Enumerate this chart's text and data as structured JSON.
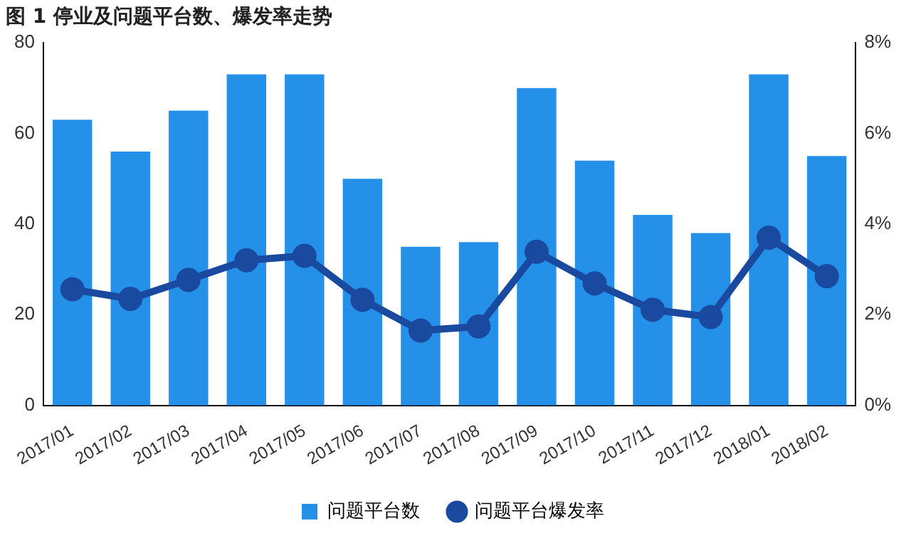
{
  "chart_data": {
    "type": "bar",
    "title": "图 1 停业及问题平台数、爆发率走势",
    "categories": [
      "2017/01",
      "2017/02",
      "2017/03",
      "2017/04",
      "2017/05",
      "2017/06",
      "2017/07",
      "2017/08",
      "2017/09",
      "2017/10",
      "2017/11",
      "2017/12",
      "2018/01",
      "2018/02"
    ],
    "series": [
      {
        "name": "问题平台数",
        "color": "#2490e8",
        "values": [
          63,
          56,
          65,
          73,
          73,
          50,
          35,
          36,
          70,
          54,
          42,
          38,
          73,
          55
        ]
      },
      {
        "name": "问题平台爆发率",
        "type": "line",
        "axis": "y2",
        "color": "#1a4aa0",
        "values": [
          2.56,
          2.35,
          2.77,
          3.2,
          3.3,
          2.33,
          1.65,
          1.74,
          3.39,
          2.69,
          2.11,
          1.95,
          3.7,
          2.85
        ]
      }
    ],
    "ylim": [
      0,
      80
    ],
    "yticks": [
      0,
      20,
      40,
      60,
      80
    ],
    "y2lim": [
      0,
      8
    ],
    "y2ticks": [
      {
        "value": 0,
        "label": "0%"
      },
      {
        "value": 2,
        "label": "2%"
      },
      {
        "value": 4,
        "label": "4%"
      },
      {
        "value": 6,
        "label": "6%"
      },
      {
        "value": 8,
        "label": "8%"
      }
    ],
    "grid": false,
    "legend": "bottom",
    "marker": "circle",
    "line_style": "solid"
  }
}
